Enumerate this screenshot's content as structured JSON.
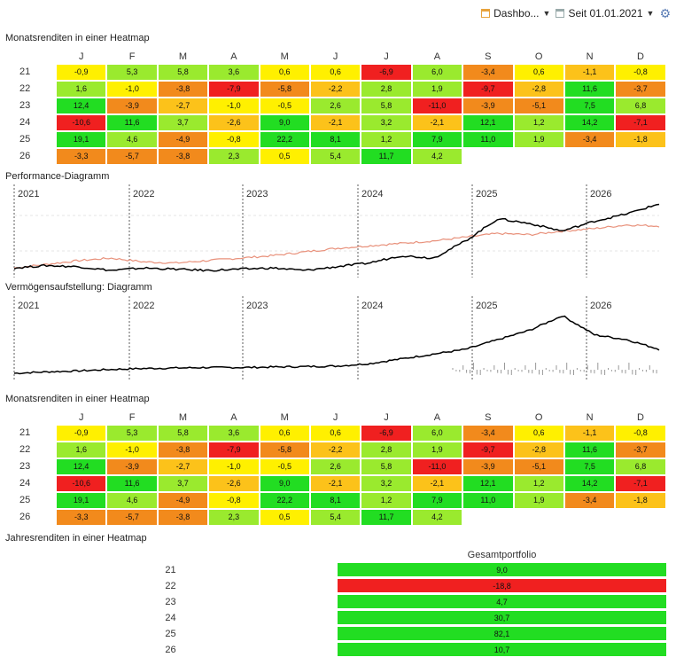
{
  "toolbar": {
    "view_label": "Dashbo...",
    "period_label": "Seit 01.01.2021"
  },
  "sections": {
    "heatmap1": "Monatsrenditen in einer Heatmap",
    "performance": "Performance-Diagramm",
    "assets": "Vermögensaufstellung: Diagramm",
    "heatmap2": "Monatsrenditen in einer Heatmap",
    "yearly": "Jahresrenditen in einer Heatmap"
  },
  "colors": {
    "strong_positive": "#22dd22",
    "positive": "#9aea2e",
    "neutral": "#fff000",
    "slight_negative": "#fcc21a",
    "negative": "#f28a1c",
    "strong_negative": "#f02020",
    "portfolio_line": "#000000",
    "benchmark_line": "#e8907a"
  },
  "chart_data": [
    {
      "type": "heatmap",
      "title": "Monatsrenditen in einer Heatmap",
      "columns": [
        "J",
        "F",
        "M",
        "A",
        "M",
        "J",
        "J",
        "A",
        "S",
        "O",
        "N",
        "D"
      ],
      "rows": [
        "21",
        "22",
        "23",
        "24",
        "25",
        "26"
      ],
      "values": [
        [
          "-0,9",
          "5,3",
          "5,8",
          "3,6",
          "0,6",
          "0,6",
          "-6,9",
          "6,0",
          "-3,4",
          "0,6",
          "-1,1",
          "-0,8"
        ],
        [
          "1,6",
          "-1,0",
          "-3,8",
          "-7,9",
          "-5,8",
          "-2,2",
          "2,8",
          "1,9",
          "-9,7",
          "-2,8",
          "11,6",
          "-3,7"
        ],
        [
          "12,4",
          "-3,9",
          "-2,7",
          "-1,0",
          "-0,5",
          "2,6",
          "5,8",
          "-11,0",
          "-3,9",
          "-5,1",
          "7,5",
          "6,8"
        ],
        [
          "-10,6",
          "11,6",
          "3,7",
          "-2,6",
          "9,0",
          "-2,1",
          "3,2",
          "-2,1",
          "12,1",
          "1,2",
          "14,2",
          "-7,1"
        ],
        [
          "19,1",
          "4,6",
          "-4,9",
          "-0,8",
          "22,2",
          "8,1",
          "1,2",
          "7,9",
          "11,0",
          "1,9",
          "-3,4",
          "-1,8"
        ],
        [
          "-3,3",
          "-5,7",
          "-3,8",
          "2,3",
          "0,5",
          "5,4",
          "11,7",
          "4,2",
          "",
          "",
          "",
          ""
        ]
      ]
    },
    {
      "type": "line",
      "title": "Performance-Diagramm",
      "x_labels": [
        "2021",
        "2022",
        "2023",
        "2024",
        "2025",
        "2026"
      ],
      "series": [
        {
          "color": "#000000",
          "values": [
            0,
            2,
            1,
            -2,
            0,
            -1,
            -2,
            -1,
            0,
            -2,
            1,
            4,
            10,
            8,
            22,
            40,
            36,
            30,
            38,
            44,
            52
          ]
        },
        {
          "color": "#e8907a",
          "values": [
            0,
            3,
            6,
            8,
            5,
            4,
            6,
            8,
            10,
            13,
            16,
            18,
            20,
            22,
            25,
            28,
            27,
            30,
            32,
            35,
            34
          ]
        }
      ]
    },
    {
      "type": "area",
      "title": "Vermögensaufstellung: Diagramm",
      "x_labels": [
        "2021",
        "2022",
        "2023",
        "2024",
        "2025",
        "2026"
      ],
      "series": [
        {
          "color": "#000000",
          "values": [
            0,
            0.3,
            0.5,
            0.8,
            1.0,
            1.1,
            1.2,
            1.2,
            1.3,
            1.4,
            1.5,
            2.0,
            3.0,
            4.0,
            5.0,
            7.0,
            9.0,
            12.0,
            8.0,
            7.0,
            5.0
          ]
        }
      ]
    },
    {
      "type": "heatmap",
      "title": "Monatsrenditen in einer Heatmap",
      "columns": [
        "J",
        "F",
        "M",
        "A",
        "M",
        "J",
        "J",
        "A",
        "S",
        "O",
        "N",
        "D"
      ],
      "rows": [
        "21",
        "22",
        "23",
        "24",
        "25",
        "26"
      ],
      "values": [
        [
          "-0,9",
          "5,3",
          "5,8",
          "3,6",
          "0,6",
          "0,6",
          "-6,9",
          "6,0",
          "-3,4",
          "0,6",
          "-1,1",
          "-0,8"
        ],
        [
          "1,6",
          "-1,0",
          "-3,8",
          "-7,9",
          "-5,8",
          "-2,2",
          "2,8",
          "1,9",
          "-9,7",
          "-2,8",
          "11,6",
          "-3,7"
        ],
        [
          "12,4",
          "-3,9",
          "-2,7",
          "-1,0",
          "-0,5",
          "2,6",
          "5,8",
          "-11,0",
          "-3,9",
          "-5,1",
          "7,5",
          "6,8"
        ],
        [
          "-10,6",
          "11,6",
          "3,7",
          "-2,6",
          "9,0",
          "-2,1",
          "3,2",
          "-2,1",
          "12,1",
          "1,2",
          "14,2",
          "-7,1"
        ],
        [
          "19,1",
          "4,6",
          "-4,9",
          "-0,8",
          "22,2",
          "8,1",
          "1,2",
          "7,9",
          "11,0",
          "1,9",
          "-3,4",
          "-1,8"
        ],
        [
          "-3,3",
          "-5,7",
          "-3,8",
          "2,3",
          "0,5",
          "5,4",
          "11,7",
          "4,2",
          "",
          "",
          "",
          ""
        ]
      ]
    },
    {
      "type": "heatmap",
      "title": "Jahresrenditen in einer Heatmap",
      "columns": [
        "Gesamtportfolio"
      ],
      "rows": [
        "21",
        "22",
        "23",
        "24",
        "25",
        "26"
      ],
      "values": [
        [
          "9,0"
        ],
        [
          "-18,8"
        ],
        [
          "4,7"
        ],
        [
          "30,7"
        ],
        [
          "82,1"
        ],
        [
          "10,7"
        ]
      ]
    }
  ]
}
